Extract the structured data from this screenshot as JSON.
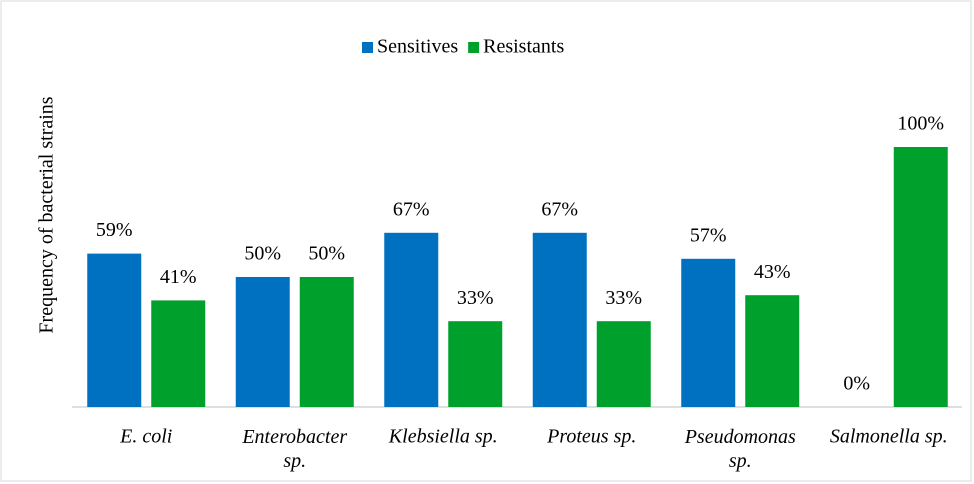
{
  "chart_data": {
    "type": "bar",
    "y_axis_label": "Frequency of bacterial strains",
    "categories": [
      "E. coli",
      "Enterobacter sp.",
      "Klebsiella sp.",
      "Proteus sp.",
      "Pseudomonas sp.",
      "Salmonella sp."
    ],
    "series": [
      {
        "name": "Sensitives",
        "color": "#0070c0",
        "values": [
          59,
          50,
          67,
          67,
          57,
          0
        ],
        "value_labels": [
          "59%",
          "50%",
          "67%",
          "67%",
          "57%",
          "0%"
        ]
      },
      {
        "name": "Resistants",
        "color": "#00a02c",
        "values": [
          41,
          50,
          33,
          33,
          43,
          100
        ],
        "value_labels": [
          "41%",
          "50%",
          "33%",
          "33%",
          "43%",
          "100%"
        ]
      }
    ],
    "ylim": [
      0,
      100
    ],
    "legend": "top"
  }
}
